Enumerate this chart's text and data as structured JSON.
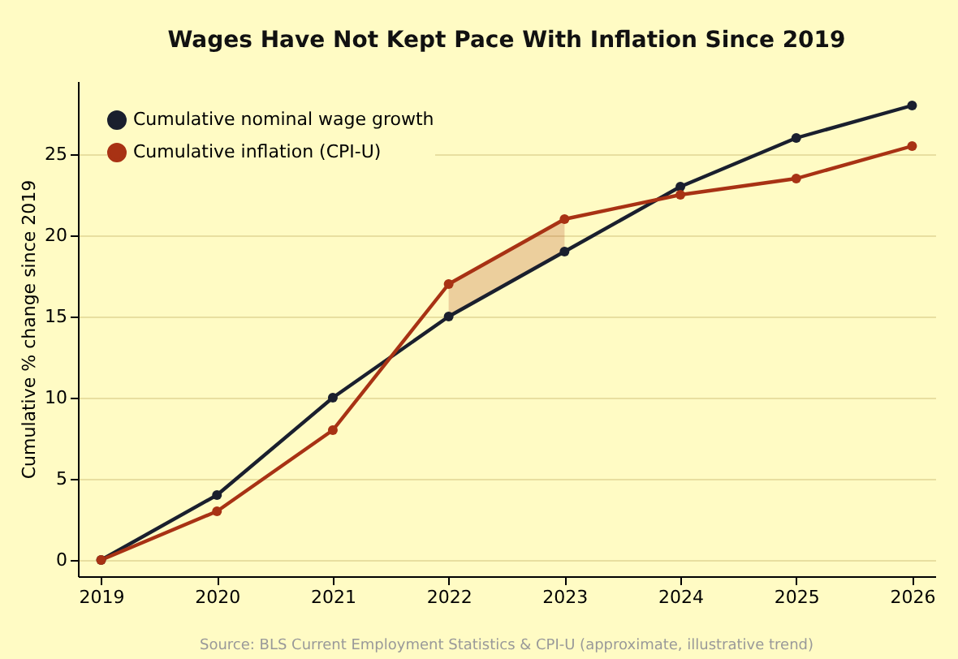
{
  "chart_data": {
    "type": "line",
    "title": "Wages Have Not Kept Pace With Inflation Since 2019",
    "ylabel": "Cumulative % change since 2019",
    "x": [
      2019,
      2020,
      2021,
      2022,
      2023,
      2024,
      2025,
      2026
    ],
    "series": [
      {
        "name": "Cumulative nominal wage growth",
        "color": "#1a1f2e",
        "values": [
          0,
          4,
          10,
          15,
          19,
          23,
          26,
          28
        ]
      },
      {
        "name": "Cumulative inflation (CPI-U)",
        "color": "#a83214",
        "values": [
          0,
          3,
          8,
          17,
          21,
          22.5,
          23.5,
          25.5
        ],
        "lower": [
          null,
          null,
          null,
          15,
          19,
          null,
          null,
          null
        ],
        "upper": [
          null,
          null,
          null,
          17,
          21,
          null,
          null,
          null
        ]
      }
    ],
    "xlim": [
      2018.8,
      2026.2
    ],
    "xticks": [
      2019,
      2020,
      2021,
      2022,
      2023,
      2024,
      2025,
      2026
    ],
    "ylim": [
      -1,
      29.5
    ],
    "yticks": [
      0,
      5,
      10,
      15,
      20,
      25
    ],
    "grid": "y",
    "legend": "top left",
    "marker": "circle",
    "line_style": "solid",
    "annotations": [
      "Source: BLS Current Employment Statistics & CPI-U (approximate, illustrative trend)"
    ]
  }
}
